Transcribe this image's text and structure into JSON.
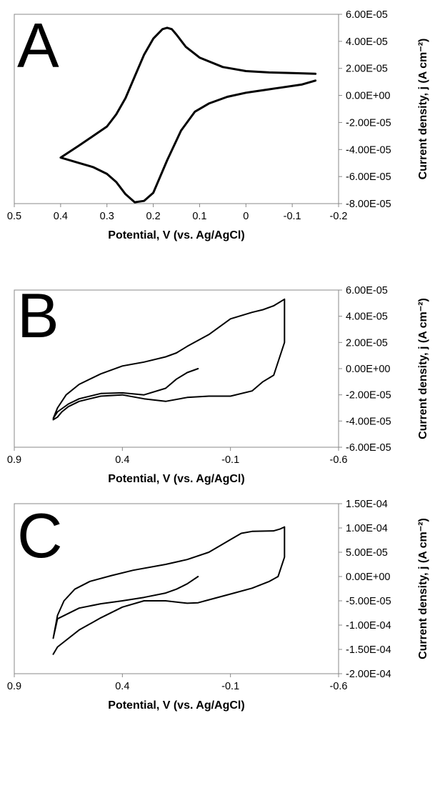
{
  "chart_data": [
    {
      "type": "line",
      "panel_label": "A",
      "xlabel": "Potential, V (vs. Ag/AgCl)",
      "ylabel": "Current density, j (A cm⁻²)",
      "xlim": [
        0.5,
        -0.2
      ],
      "ylim": [
        -8e-05,
        6e-05
      ],
      "x_ticks": [
        "0.5",
        "0.4",
        "0.3",
        "0.2",
        "0.1",
        "0",
        "-0.1",
        "-0.2"
      ],
      "y_ticks": [
        "6.00E-05",
        "4.00E-05",
        "2.00E-05",
        "0.00E+00",
        "-2.00E-05",
        "-4.00E-05",
        "-6.00E-05",
        "-8.00E-05"
      ],
      "grid": false,
      "series": [
        {
          "color": "#000000",
          "x": [
            -0.15,
            -0.12,
            -0.08,
            -0.04,
            0.0,
            0.04,
            0.08,
            0.11,
            0.14,
            0.17,
            0.2,
            0.22,
            0.24,
            0.26,
            0.28,
            0.3,
            0.33,
            0.36,
            0.4,
            0.36,
            0.33,
            0.3,
            0.28,
            0.26,
            0.24,
            0.22,
            0.2,
            0.18,
            0.17,
            0.16,
            0.15,
            0.13,
            0.1,
            0.05,
            0.0,
            -0.05,
            -0.1,
            -0.15
          ],
          "y": [
            1.1e-05,
            8e-06,
            6e-06,
            4e-06,
            2e-06,
            -1e-06,
            -6e-06,
            -1.2e-05,
            -2.6e-05,
            -4.8e-05,
            -7.2e-05,
            -7.8e-05,
            -7.9e-05,
            -7.3e-05,
            -6.4e-05,
            -5.8e-05,
            -5.3e-05,
            -5e-05,
            -4.6e-05,
            -3.7e-05,
            -3e-05,
            -2.3e-05,
            -1.4e-05,
            -2e-06,
            1.4e-05,
            3e-05,
            4.2e-05,
            4.9e-05,
            5e-05,
            4.9e-05,
            4.5e-05,
            3.6e-05,
            2.8e-05,
            2.1e-05,
            1.8e-05,
            1.7e-05,
            1.65e-05,
            1.6e-05
          ]
        }
      ]
    },
    {
      "type": "line",
      "panel_label": "B",
      "xlabel": "Potential, V (vs. Ag/AgCl)",
      "ylabel": "Current density, j (A cm⁻²)",
      "xlim": [
        0.9,
        -0.6
      ],
      "ylim": [
        -6e-05,
        6e-05
      ],
      "x_ticks": [
        "0.9",
        "0.4",
        "-0.1",
        "-0.6"
      ],
      "y_ticks": [
        "6.00E-05",
        "4.00E-05",
        "2.00E-05",
        "0.00E+00",
        "-2.00E-05",
        "-4.00E-05",
        "-6.00E-05"
      ],
      "grid": false,
      "series": [
        {
          "color": "#000000",
          "x": [
            0.05,
            0.1,
            0.15,
            0.2,
            0.3,
            0.4,
            0.5,
            0.6,
            0.65,
            0.7,
            0.72,
            0.7,
            0.66,
            0.6,
            0.5,
            0.4,
            0.3,
            0.2,
            0.15,
            0.1,
            0.0,
            -0.1,
            -0.2,
            -0.25,
            -0.3,
            -0.33,
            -0.35,
            -0.35,
            -0.3,
            -0.25,
            -0.2,
            -0.1,
            0.0,
            0.1,
            0.2,
            0.3,
            0.4,
            0.5,
            0.6,
            0.65,
            0.68,
            0.7,
            0.72
          ],
          "y": [
            0.0,
            -3e-06,
            -8e-06,
            -1.5e-05,
            -2e-05,
            -1.85e-05,
            -1.9e-05,
            -2.3e-05,
            -2.7e-05,
            -3.3e-05,
            -3.8e-05,
            -3e-05,
            -2e-05,
            -1.2e-05,
            -4e-06,
            2e-06,
            5e-06,
            9e-06,
            1.2e-05,
            1.7e-05,
            2.6e-05,
            3.8e-05,
            4.3e-05,
            4.5e-05,
            4.8e-05,
            5.1e-05,
            5.3e-05,
            2e-05,
            -5e-06,
            -1e-05,
            -1.7e-05,
            -2.1e-05,
            -2.1e-05,
            -2.2e-05,
            -2.5e-05,
            -2.3e-05,
            -2e-05,
            -2.1e-05,
            -2.5e-05,
            -2.9e-05,
            -3.3e-05,
            -3.7e-05,
            -3.9e-05
          ]
        }
      ]
    },
    {
      "type": "line",
      "panel_label": "C",
      "xlabel": "Potential, V (vs. Ag/AgCl)",
      "ylabel": "Current density, j (A cm⁻²)",
      "xlim": [
        0.9,
        -0.6
      ],
      "ylim": [
        -0.0002,
        0.00015
      ],
      "x_ticks": [
        "0.9",
        "0.4",
        "-0.1",
        "-0.6"
      ],
      "y_ticks": [
        "1.50E-04",
        "1.00E-04",
        "5.00E-05",
        "0.00E+00",
        "-5.00E-05",
        "-1.00E-04",
        "-1.50E-04",
        "-2.00E-04"
      ],
      "grid": false,
      "series": [
        {
          "color": "#000000",
          "x": [
            0.05,
            0.1,
            0.15,
            0.2,
            0.3,
            0.4,
            0.5,
            0.6,
            0.7,
            0.72,
            0.7,
            0.67,
            0.62,
            0.55,
            0.45,
            0.35,
            0.2,
            0.1,
            0.0,
            -0.1,
            -0.15,
            -0.2,
            -0.3,
            -0.33,
            -0.35,
            -0.35,
            -0.32,
            -0.28,
            -0.2,
            -0.1,
            0.0,
            0.05,
            0.1,
            0.2,
            0.3,
            0.4,
            0.5,
            0.6,
            0.7,
            0.72
          ],
          "y": [
            0.0,
            -1.5e-05,
            -2.6e-05,
            -3.4e-05,
            -4.3e-05,
            -5e-05,
            -5.6e-05,
            -6.5e-05,
            -8.7e-05,
            -0.000127,
            -8e-05,
            -5e-05,
            -2.6e-05,
            -1e-05,
            2e-06,
            1.3e-05,
            2.5e-05,
            3.5e-05,
            5e-05,
            7.6e-05,
            8.9e-05,
            9.3e-05,
            9.4e-05,
            9.8e-05,
            0.000102,
            4e-05,
            0.0,
            -1e-05,
            -2.4e-05,
            -3.6e-05,
            -4.8e-05,
            -5.4e-05,
            -5.5e-05,
            -5e-05,
            -5e-05,
            -6.3e-05,
            -8.5e-05,
            -0.00011,
            -0.000145,
            -0.00016
          ]
        }
      ]
    }
  ]
}
